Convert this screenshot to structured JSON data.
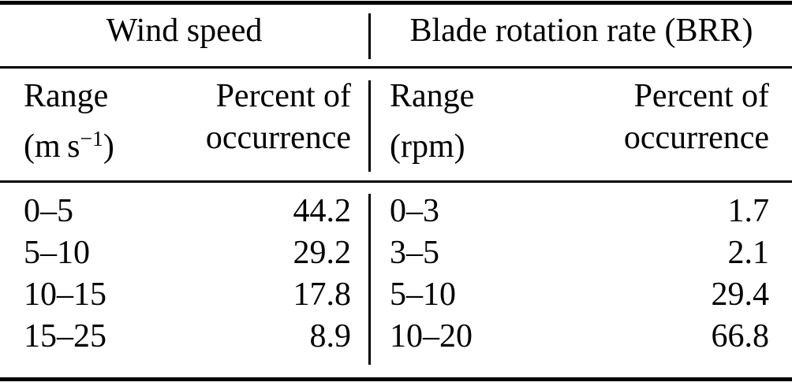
{
  "table": {
    "sections": [
      {
        "title": "Wind speed",
        "columns": {
          "range": {
            "line1": "Range",
            "unit_pre": "(m s",
            "unit_sup": "−1",
            "unit_post": ")"
          },
          "percent": {
            "line1": "Percent of",
            "line2": "occurrence"
          }
        },
        "rows": [
          {
            "range": "0–5",
            "percent": "44.2"
          },
          {
            "range": "5–10",
            "percent": "29.2"
          },
          {
            "range": "10–15",
            "percent": "17.8"
          },
          {
            "range": "15–25",
            "percent": "8.9"
          }
        ]
      },
      {
        "title": "Blade rotation rate (BRR)",
        "columns": {
          "range": {
            "line1": "Range",
            "unit_pre": "(rpm)",
            "unit_sup": "",
            "unit_post": ""
          },
          "percent": {
            "line1": "Percent of",
            "line2": "occurrence"
          }
        },
        "rows": [
          {
            "range": "0–3",
            "percent": "1.7"
          },
          {
            "range": "3–5",
            "percent": "2.1"
          },
          {
            "range": "5–10",
            "percent": "29.4"
          },
          {
            "range": "10–20",
            "percent": "66.8"
          }
        ]
      }
    ],
    "colors": {
      "text": "#000000",
      "background": "#ffffff",
      "rule": "#000000"
    }
  }
}
